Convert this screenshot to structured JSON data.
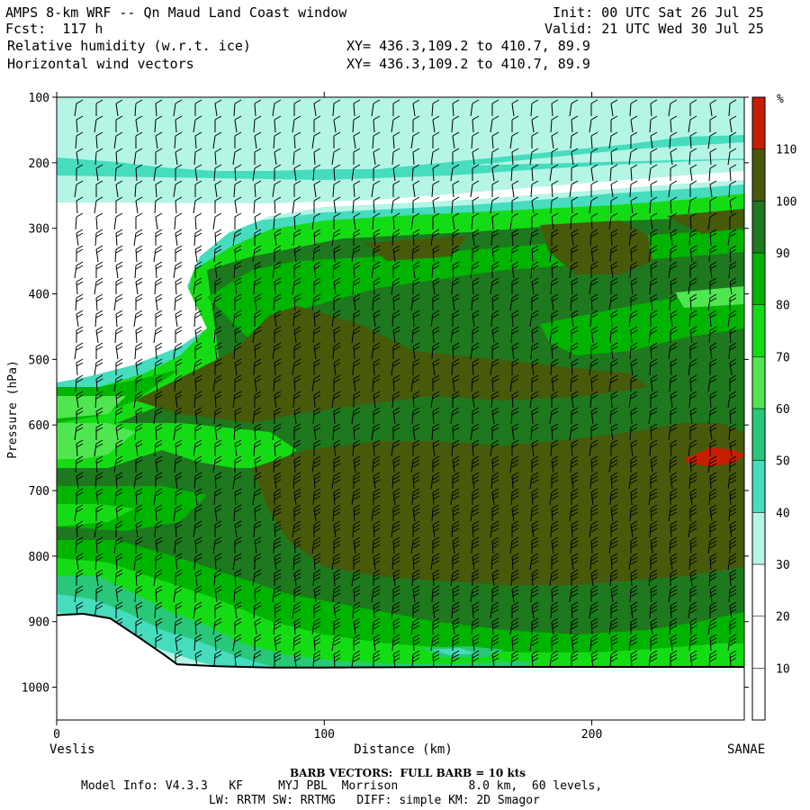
{
  "header": {
    "title": "AMPS 8-km WRF -- Qn Maud Land Coast window",
    "init": "Init: 00 UTC Sat 26 Jul 25",
    "fcst": "Fcst:  117 h",
    "valid": "Valid: 21 UTC Wed 30 Jul 25",
    "field1": "Relative humidity (w.r.t. ice)",
    "field2": "Horizontal wind vectors",
    "xy1": "XY= 436.3,109.2 to 410.7, 89.9",
    "xy2": "XY= 436.3,109.2 to 410.7, 89.9"
  },
  "footer": {
    "barb": "BARB VECTORS:  FULL BARB = 10 kts",
    "model1": "Model Info: V4.3.3   KF     MYJ PBL  Morrison          8.0 km,  60 levels,",
    "model2": "LW: RRTM SW: RRTMG   DIFF: simple KM: 2D Smagor"
  },
  "colors": {
    "c0": "#ffffff",
    "c30": "#b4f5e6",
    "c40": "#46dcbe",
    "c50": "#28c878",
    "c60": "#50e650",
    "c70": "#14dc14",
    "c80": "#00b400",
    "c90": "#1e781e",
    "c100": "#465a0a",
    "c110": "#c81e00"
  },
  "chart_data": {
    "type": "heatmap",
    "title": "Relative humidity (w.r.t. ice)",
    "xlabel": "Distance (km)",
    "ylabel": "Pressure (hPa)",
    "x_left_label": "Veslis",
    "x_right_label": "SANAE",
    "xlim": [
      0,
      257
    ],
    "ylim": [
      1050,
      100
    ],
    "x_ticks": [
      "0",
      "100",
      "200"
    ],
    "y_ticks": [
      "100",
      "200",
      "300",
      "400",
      "500",
      "600",
      "700",
      "800",
      "900",
      "1000"
    ],
    "colorbar": {
      "unit": "%",
      "levels": [
        "10",
        "20",
        "30",
        "40",
        "50",
        "60",
        "70",
        "80",
        "90",
        "100",
        "110"
      ]
    },
    "overlay": "Horizontal wind vectors (barbs, full barb = 10 kts)",
    "terrain_surface_hPa": [
      [
        0,
        890
      ],
      [
        10,
        888
      ],
      [
        20,
        895
      ],
      [
        30,
        922
      ],
      [
        40,
        950
      ],
      [
        45,
        965
      ],
      [
        60,
        968
      ],
      [
        80,
        970
      ],
      [
        100,
        970
      ],
      [
        150,
        969
      ],
      [
        200,
        969
      ],
      [
        257,
        969
      ]
    ]
  }
}
